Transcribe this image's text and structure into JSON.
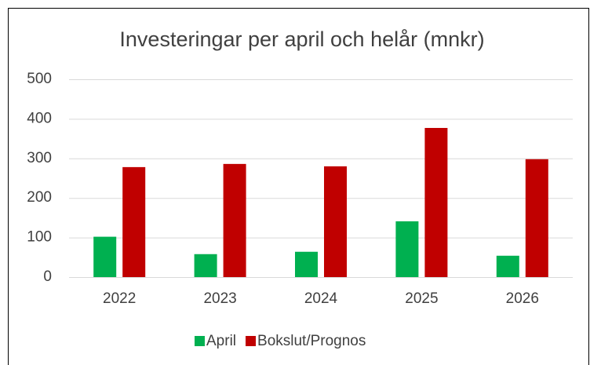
{
  "chart_data": {
    "type": "bar",
    "title": "Investeringar per april och helår (mnkr)",
    "categories": [
      "2022",
      "2023",
      "2024",
      "2025",
      "2026"
    ],
    "series": [
      {
        "name": "April",
        "color": "#00b050",
        "values": [
          102,
          58,
          64,
          141,
          54
        ]
      },
      {
        "name": "Bokslut/Prognos",
        "color": "#c00000",
        "values": [
          278,
          286,
          280,
          377,
          298
        ]
      }
    ],
    "ylim": [
      0,
      500
    ],
    "yticks": [
      0,
      100,
      200,
      300,
      400,
      500
    ],
    "grid": true,
    "legend": "bottom"
  }
}
